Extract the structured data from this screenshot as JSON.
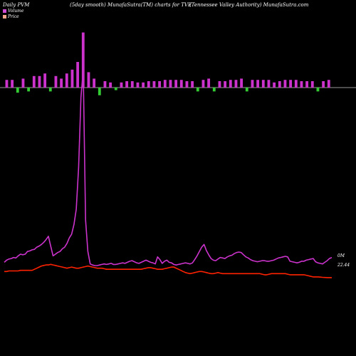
{
  "header": {
    "left": "Daily PVM",
    "middle": "(5day smooth) MunafaSutra(TM) charts for TVE",
    "right": "(Tennessee  Valley Authority) MunafaSutra.com"
  },
  "colors": {
    "background": "#000000",
    "volume_line": "#cc33cc",
    "volume_up_bar": "#cc33cc",
    "volume_down_bar": "#33cc33",
    "price_line": "#ff2200",
    "baseline": "#cccccc"
  },
  "chart_data": {
    "type": "line",
    "title": "",
    "xlabel": "",
    "ylabel": "",
    "legend": [
      "Volume",
      "Price"
    ],
    "legend_placement": "top-left",
    "grid": false,
    "series": [
      {
        "name": "Volume",
        "label": "0M",
        "values": [
          10,
          14,
          16,
          17,
          19,
          18,
          22,
          25,
          24,
          25,
          30,
          31,
          33,
          34,
          38,
          40,
          43,
          47,
          52,
          58,
          40,
          22,
          25,
          28,
          30,
          35,
          38,
          45,
          55,
          62,
          80,
          108,
          185,
          315,
          365,
          88,
          30,
          7,
          5,
          4,
          4,
          5,
          6,
          7,
          6,
          7,
          8,
          6,
          6,
          7,
          8,
          9,
          8,
          10,
          12,
          13,
          11,
          9,
          8,
          10,
          12,
          14,
          12,
          10,
          9,
          7,
          20,
          15,
          8,
          12,
          14,
          10,
          9,
          6,
          5,
          6,
          7,
          8,
          9,
          8,
          7,
          9,
          15,
          22,
          30,
          38,
          43,
          32,
          24,
          17,
          14,
          13,
          16,
          19,
          18,
          17,
          20,
          22,
          23,
          26,
          28,
          29,
          28,
          24,
          20,
          18,
          15,
          13,
          12,
          11,
          12,
          13,
          13,
          12,
          12,
          13,
          14,
          16,
          18,
          19,
          20,
          21,
          20,
          12,
          11,
          10,
          9,
          10,
          12,
          12,
          14,
          15,
          16,
          17,
          11,
          9,
          8,
          7,
          10,
          13,
          17,
          19
        ]
      },
      {
        "name": "Price",
        "label": "22.44",
        "values": [
          23.0,
          23.0,
          23.05,
          23.05,
          23.05,
          23.05,
          23.05,
          23.1,
          23.1,
          23.1,
          23.1,
          23.1,
          23.1,
          23.2,
          23.3,
          23.4,
          23.5,
          23.55,
          23.6,
          23.6,
          23.65,
          23.6,
          23.55,
          23.5,
          23.45,
          23.4,
          23.35,
          23.3,
          23.35,
          23.4,
          23.35,
          23.3,
          23.3,
          23.35,
          23.4,
          23.45,
          23.5,
          23.45,
          23.4,
          23.35,
          23.3,
          23.3,
          23.3,
          23.25,
          23.2,
          23.2,
          23.2,
          23.2,
          23.2,
          23.2,
          23.2,
          23.2,
          23.2,
          23.2,
          23.2,
          23.2,
          23.2,
          23.2,
          23.2,
          23.2,
          23.25,
          23.3,
          23.35,
          23.35,
          23.3,
          23.25,
          23.2,
          23.2,
          23.2,
          23.25,
          23.3,
          23.35,
          23.4,
          23.4,
          23.3,
          23.2,
          23.1,
          23.0,
          22.9,
          22.85,
          22.8,
          22.85,
          22.9,
          22.95,
          23.0,
          23.0,
          22.95,
          22.9,
          22.85,
          22.8,
          22.8,
          22.85,
          22.9,
          22.85,
          22.8,
          22.8,
          22.8,
          22.8,
          22.8,
          22.8,
          22.8,
          22.8,
          22.8,
          22.8,
          22.8,
          22.8,
          22.8,
          22.8,
          22.8,
          22.8,
          22.8,
          22.75,
          22.7,
          22.7,
          22.75,
          22.8,
          22.8,
          22.8,
          22.8,
          22.8,
          22.8,
          22.8,
          22.75,
          22.7,
          22.7,
          22.7,
          22.7,
          22.7,
          22.7,
          22.7,
          22.65,
          22.6,
          22.55,
          22.5,
          22.5,
          22.5,
          22.48,
          22.46,
          22.45,
          22.44,
          22.44,
          22.44
        ]
      }
    ],
    "volume_bars": {
      "up": [
        6,
        6,
        0,
        7,
        0,
        9,
        9,
        11,
        0,
        9,
        7,
        11,
        14,
        20,
        43,
        12,
        7,
        0,
        5,
        4,
        0,
        4,
        5,
        5,
        4,
        4,
        5,
        5,
        5,
        6,
        6,
        6,
        6,
        5,
        5,
        0,
        6,
        7,
        0,
        5,
        5,
        6,
        6,
        7,
        0,
        6,
        6,
        6,
        6,
        4,
        5,
        6,
        6,
        6,
        5,
        5,
        5,
        0,
        5,
        6
      ],
      "down": [
        0,
        0,
        4,
        0,
        3,
        0,
        0,
        0,
        3,
        0,
        0,
        0,
        0,
        0,
        0,
        0,
        0,
        6,
        0,
        0,
        2,
        0,
        0,
        0,
        0,
        0,
        0,
        0,
        0,
        0,
        0,
        0,
        0,
        0,
        0,
        3,
        0,
        0,
        3,
        0,
        0,
        0,
        0,
        0,
        3,
        0,
        0,
        0,
        0,
        0,
        0,
        0,
        0,
        0,
        0,
        0,
        0,
        3,
        0,
        0
      ]
    }
  }
}
